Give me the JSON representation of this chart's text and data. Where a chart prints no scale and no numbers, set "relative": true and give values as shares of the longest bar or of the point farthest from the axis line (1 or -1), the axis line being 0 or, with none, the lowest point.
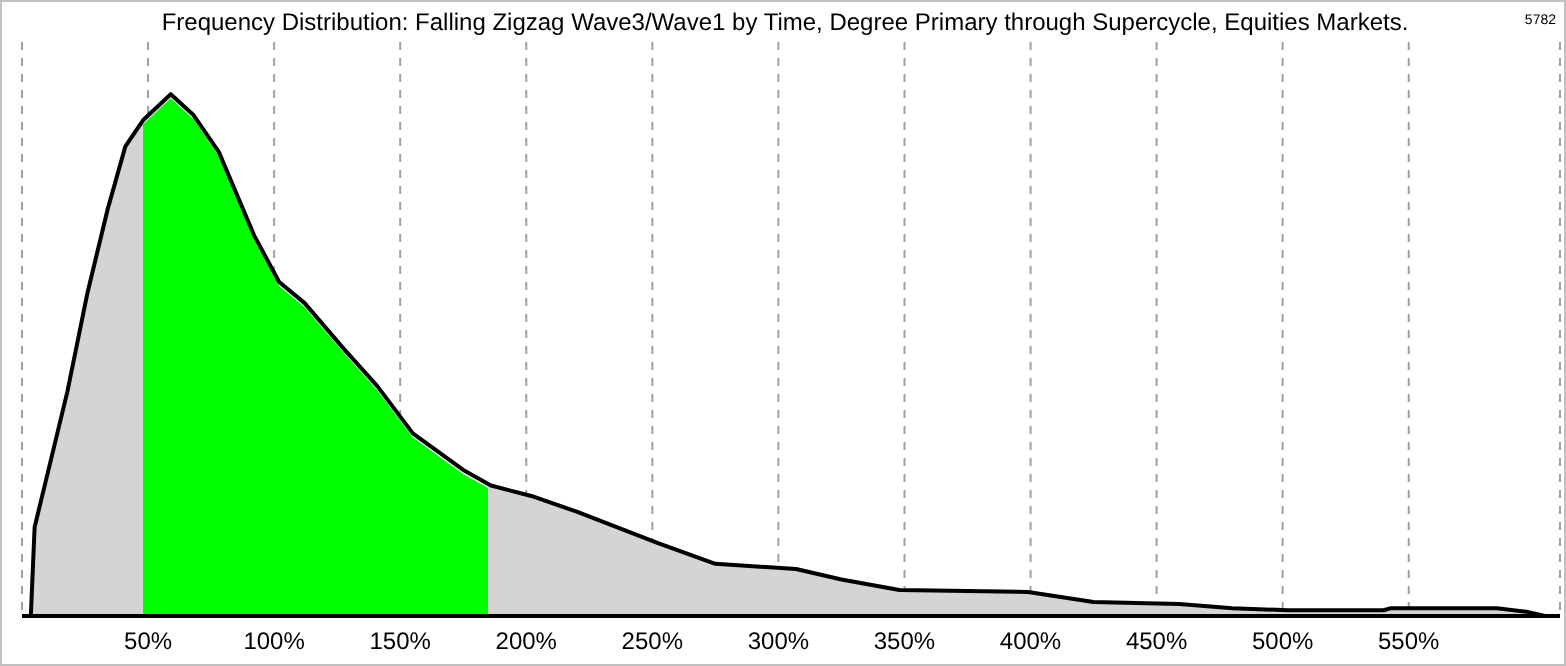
{
  "chart_data": {
    "type": "area",
    "title": "Frequency Distribution: Falling Zigzag Wave3/Wave1 by Time, Degree Primary through Supercycle, Equities Markets.",
    "annotations": [
      "5782"
    ],
    "relative": true,
    "x": [
      3.5,
      5,
      10,
      18,
      26,
      34,
      41,
      48,
      59,
      68,
      78,
      92,
      102,
      112,
      128,
      141,
      155,
      175,
      186,
      202,
      220,
      252,
      275,
      307,
      325,
      348,
      399,
      425,
      459,
      480,
      502,
      540,
      543,
      585,
      597,
      604
    ],
    "series": [
      {
        "color": "#000000",
        "values": [
          0,
          0.17,
          0.27,
          0.43,
          0.62,
          0.78,
          0.9,
          0.95,
          1,
          0.96,
          0.89,
          0.73,
          0.64,
          0.6,
          0.51,
          0.44,
          0.35,
          0.28,
          0.25,
          0.23,
          0.2,
          0.14,
          0.1,
          0.09,
          0.07,
          0.05,
          0.046,
          0.027,
          0.023,
          0.015,
          0.011,
          0.011,
          0.015,
          0.015,
          0.008,
          0
        ]
      }
    ],
    "bands": [
      {
        "axis": "x",
        "from": 48,
        "to": 185,
        "color": "#00ff00"
      }
    ],
    "xlim": [
      0,
      610
    ],
    "xticks": [
      {
        "value": 50,
        "label": "50%"
      },
      {
        "value": 100,
        "label": "100%"
      },
      {
        "value": 150,
        "label": "150%"
      },
      {
        "value": 200,
        "label": "200%"
      },
      {
        "value": 250,
        "label": "250%"
      },
      {
        "value": 300,
        "label": "300%"
      },
      {
        "value": 350,
        "label": "350%"
      },
      {
        "value": 400,
        "label": "400%"
      },
      {
        "value": 450,
        "label": "450%"
      },
      {
        "value": 500,
        "label": "500%"
      },
      {
        "value": 550,
        "label": "550%"
      }
    ],
    "grid": "x",
    "legend": false
  }
}
